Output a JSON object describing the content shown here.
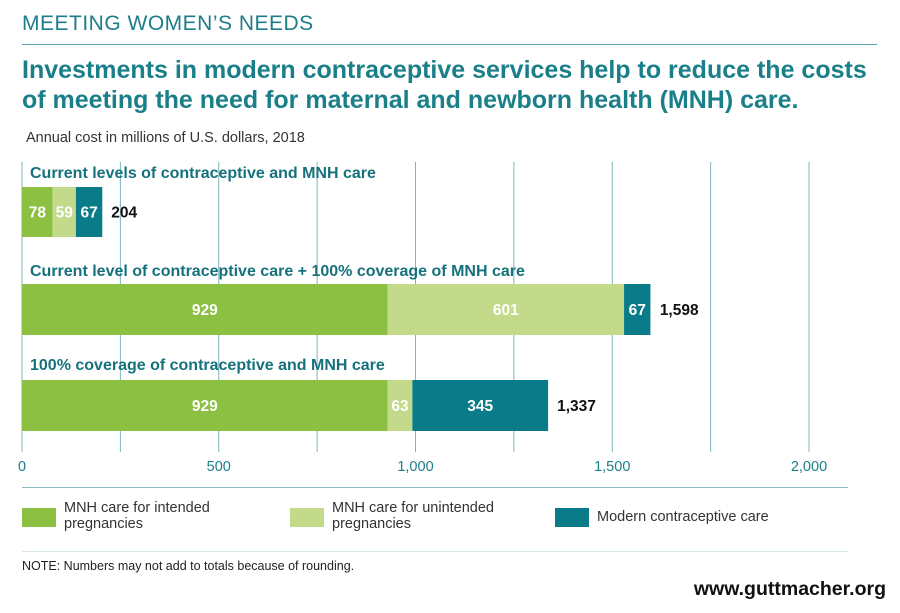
{
  "kicker": "MEETING WOMEN’S NEEDS",
  "headline": "Investments in modern contraceptive services help to reduce the costs of meeting the need for maternal and newborn health (MNH) care.",
  "colors": {
    "intended": "#8cc042",
    "unintended": "#c2da8a",
    "contraceptive": "#0a7b88",
    "grid": "#7cb6bc",
    "accent": "#1b7f89"
  },
  "legend": [
    {
      "label": "MNH care for intended pregnancies",
      "color": "#8cc042"
    },
    {
      "label": "MNH care for unintended pregnancies",
      "color": "#c2da8a"
    },
    {
      "label": "Modern contraceptive care",
      "color": "#0a7b88"
    }
  ],
  "note": "NOTE: Numbers may not add to totals because of rounding.",
  "source_url": "www.guttmacher.org",
  "chart_data": {
    "type": "bar",
    "orientation": "horizontal",
    "stacked": true,
    "subtitle": "Annual cost in millions of U.S. dollars, 2018",
    "categories": [
      "Current levels of contraceptive and MNH care",
      "Current level of contraceptive care + 100% coverage of MNH care",
      "100% coverage of contraceptive and MNH care"
    ],
    "series": [
      {
        "name": "MNH care for intended pregnancies",
        "values": [
          78,
          929,
          929
        ],
        "labels": [
          "78",
          "929",
          "929"
        ]
      },
      {
        "name": "MNH care for unintended pregnancies",
        "values": [
          59,
          601,
          63
        ],
        "labels": [
          "59",
          "601",
          "63"
        ]
      },
      {
        "name": "Modern contraceptive care",
        "values": [
          67,
          67,
          345
        ],
        "labels": [
          "67",
          "67",
          "345"
        ]
      }
    ],
    "totals": [
      204,
      1598,
      1337
    ],
    "total_labels": [
      "204",
      "1,598",
      "1,337"
    ],
    "xlim": [
      0,
      2000
    ],
    "xticks": [
      0,
      500,
      1000,
      1500,
      2000
    ],
    "xtick_labels": [
      "0",
      "500",
      "1,000",
      "1,500",
      "2,000"
    ],
    "gridline_values": [
      0,
      250,
      500,
      750,
      1000,
      1250,
      1500,
      1750,
      2000
    ],
    "grid": true,
    "legend_position": "bottom"
  }
}
